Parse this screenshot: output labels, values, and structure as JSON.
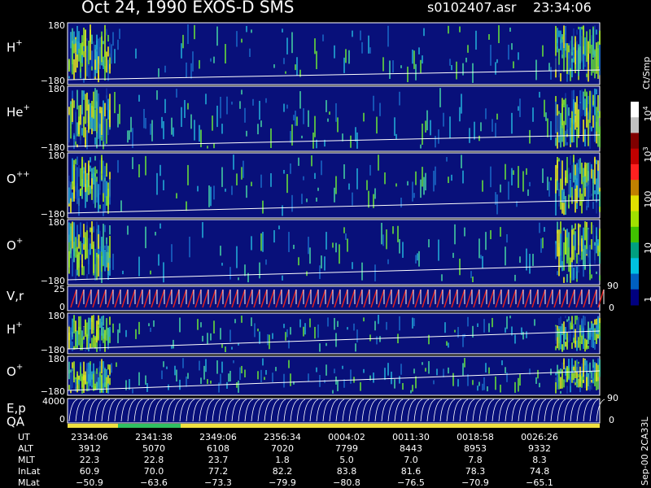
{
  "header": {
    "title": "Oct 24, 1990   EXOS-D SMS",
    "file": "s0102407.asr",
    "time": "23:34:06"
  },
  "panels": [
    {
      "label": "H",
      "sup": "+",
      "ticks": [
        "180",
        "−180"
      ]
    },
    {
      "label": "He",
      "sup": "+",
      "ticks": [
        "180",
        "−180"
      ]
    },
    {
      "label": "O",
      "sup": "++",
      "ticks": [
        "180",
        "−180"
      ]
    },
    {
      "label": "O",
      "sup": "+",
      "ticks": [
        "180",
        "−180"
      ]
    },
    {
      "label": "V,r",
      "ticks": [
        "25",
        "0"
      ],
      "right_ticks": [
        "90",
        "0"
      ]
    },
    {
      "label": "H",
      "sup": "+",
      "ticks": [
        "180",
        "−180"
      ]
    },
    {
      "label": "O",
      "sup": "+",
      "ticks": [
        "180",
        "−180"
      ]
    },
    {
      "label": "E,p",
      "label2": "QA",
      "ticks": [
        "4000",
        "0"
      ],
      "right_ticks": [
        "90",
        "0"
      ]
    }
  ],
  "colorbar": {
    "unit": "Ct/Smp",
    "ticks": [
      {
        "base": "10",
        "sup": "4"
      },
      {
        "base": "10",
        "sup": "3"
      },
      {
        "base": "100"
      },
      {
        "base": "10"
      },
      {
        "base": "1"
      }
    ]
  },
  "footer": [
    {
      "label": "UT",
      "values": [
        "2334:06",
        "2341:38",
        "2349:06",
        "2356:34",
        "0004:02",
        "0011:30",
        "0018:58",
        "0026:26"
      ]
    },
    {
      "label": "ALT",
      "values": [
        "3912",
        "5070",
        "6108",
        "7020",
        "7799",
        "8443",
        "8953",
        "9332"
      ]
    },
    {
      "label": "MLT",
      "values": [
        "22.3",
        "22.8",
        "23.7",
        "1.8",
        "5.0",
        "7.0",
        "7.8",
        "8.3"
      ]
    },
    {
      "label": "InLat",
      "values": [
        "60.9",
        "70.0",
        "77.2",
        "82.2",
        "83.8",
        "81.6",
        "78.3",
        "74.8"
      ]
    },
    {
      "label": "MLat",
      "values": [
        "−50.9",
        "−63.6",
        "−73.3",
        "−79.9",
        "−80.8",
        "−76.5",
        "−70.9",
        "−65.1"
      ]
    }
  ],
  "side_note": "Sep-00  2CA33L"
}
